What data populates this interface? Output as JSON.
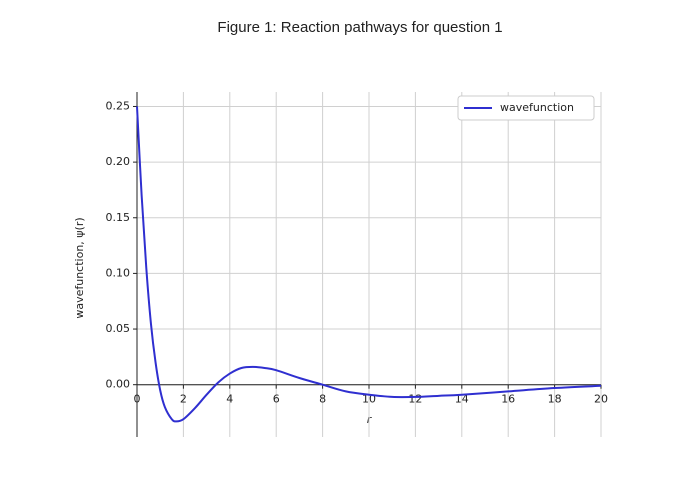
{
  "chart_data": {
    "type": "line",
    "title": "Figure 1: Reaction pathways for question 1",
    "x_label": "r",
    "y_label": "wavefunction, ψ(r)",
    "x": [
      0,
      0.2,
      0.4,
      0.6,
      0.8,
      1.0,
      1.2,
      1.5,
      1.7,
      2.0,
      2.5,
      3.0,
      3.5,
      4,
      4.5,
      5,
      5.5,
      6,
      7,
      8,
      9,
      10,
      11,
      12,
      13,
      14,
      16,
      18,
      20
    ],
    "series": [
      {
        "name": "wavefunction",
        "color": "#2f2fd0",
        "values": [
          0.25,
          0.17,
          0.105,
          0.055,
          0.02,
          -0.005,
          -0.02,
          -0.031,
          -0.033,
          -0.031,
          -0.021,
          -0.009,
          0.002,
          0.01,
          0.015,
          0.016,
          0.015,
          0.013,
          0.006,
          0.0,
          -0.006,
          -0.009,
          -0.011,
          -0.011,
          -0.01,
          -0.009,
          -0.006,
          -0.003,
          -0.001
        ]
      }
    ],
    "xlim": [
      0,
      20
    ],
    "ylim": [
      -0.047,
      0.263
    ],
    "xticks": [
      0,
      2,
      4,
      6,
      8,
      10,
      12,
      14,
      16,
      18,
      20
    ],
    "yticks": [
      {
        "value": 0,
        "label": "0.00"
      },
      {
        "value": 0.05,
        "label": "0.05"
      },
      {
        "value": 0.1,
        "label": "0.10"
      },
      {
        "value": 0.15,
        "label": "0.15"
      },
      {
        "value": 0.2,
        "label": "0.20"
      },
      {
        "value": 0.25,
        "label": "0.25"
      }
    ],
    "grid": true,
    "legend": "upper right"
  }
}
